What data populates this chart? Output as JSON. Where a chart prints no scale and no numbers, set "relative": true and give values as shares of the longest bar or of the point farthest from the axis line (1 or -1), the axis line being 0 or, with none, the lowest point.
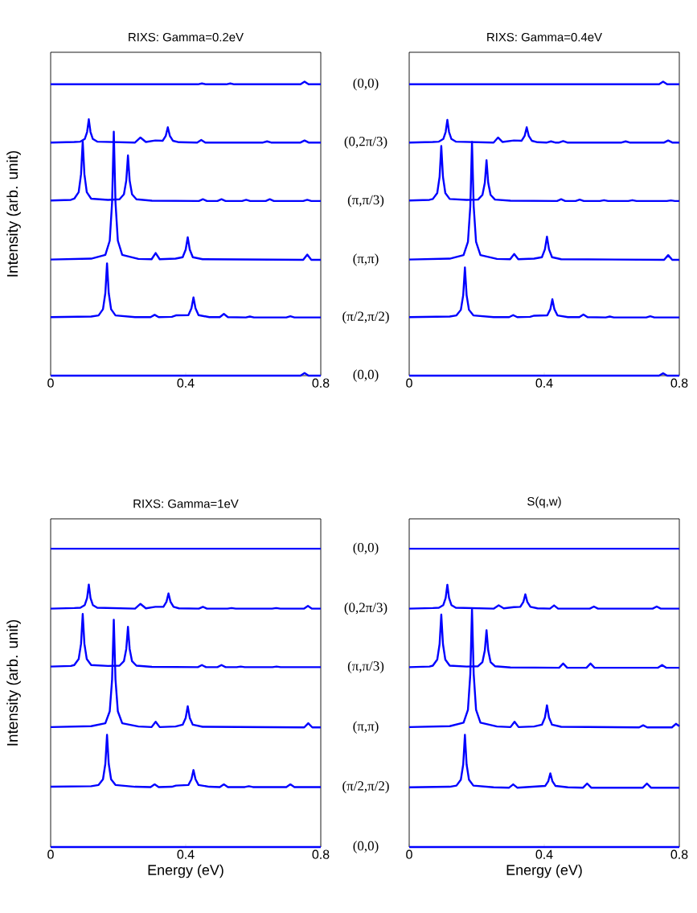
{
  "chart_data": [
    {
      "type": "line",
      "title": "RIXS: Gamma=0.2eV",
      "ylabel": "Intensity (arb. unit)",
      "relative": true,
      "xlim": [
        0,
        0.8
      ],
      "xticks": [
        0,
        0.4,
        0.8
      ],
      "series": [
        {
          "name": "(0,0)",
          "color": "#0000ff",
          "x": [
            0,
            0.436,
            0.448,
            0.46,
            0.52,
            0.532,
            0.544,
            0.74,
            0.752,
            0.764,
            0.8
          ],
          "values": [
            0.991,
            0.991,
            0.994,
            0.991,
            0.991,
            0.994,
            0.991,
            0.991,
            1,
            0.991,
            0.991
          ]
        },
        {
          "name": "(0,2π/3)",
          "color": "#0000ff",
          "x": [
            0,
            0.07,
            0.088,
            0.101,
            0.108,
            0.113,
            0.118,
            0.125,
            0.138,
            0.25,
            0.266,
            0.282,
            0.31,
            0.332,
            0.341,
            0.347,
            0.353,
            0.362,
            0.38,
            0.434,
            0.446,
            0.458,
            0.629,
            0.641,
            0.653,
            0.74,
            0.752,
            0.764,
            0.8
          ],
          "values": [
            0.793,
            0.795,
            0.796,
            0.805,
            0.829,
            0.872,
            0.829,
            0.805,
            0.796,
            0.793,
            0.81,
            0.795,
            0.8,
            0.799,
            0.816,
            0.845,
            0.816,
            0.799,
            0.794,
            0.793,
            0.802,
            0.793,
            0.793,
            0.797,
            0.793,
            0.793,
            0.8,
            0.793,
            0.793
          ]
        },
        {
          "name": "(π,π/3)",
          "color": "#0000ff",
          "x": [
            0,
            0.06,
            0.07,
            0.083,
            0.09,
            0.095,
            0.1,
            0.107,
            0.12,
            0.17,
            0.204,
            0.217,
            0.224,
            0.229,
            0.234,
            0.241,
            0.254,
            0.3,
            0.439,
            0.451,
            0.463,
            0.494,
            0.506,
            0.518,
            0.567,
            0.579,
            0.591,
            0.637,
            0.649,
            0.661,
            0.748,
            0.76,
            0.772,
            0.8
          ],
          "values": [
            0.596,
            0.598,
            0.602,
            0.624,
            0.685,
            0.797,
            0.685,
            0.624,
            0.602,
            0.598,
            0.6,
            0.617,
            0.664,
            0.749,
            0.664,
            0.617,
            0.6,
            0.595,
            0.594,
            0.6,
            0.594,
            0.594,
            0.6,
            0.594,
            0.594,
            0.598,
            0.594,
            0.594,
            0.6,
            0.594,
            0.594,
            0.598,
            0.594,
            0.594
          ]
        },
        {
          "name": "(π,π)",
          "color": "#0000ff",
          "x": [
            0,
            0.12,
            0.162,
            0.175,
            0.182,
            0.187,
            0.192,
            0.199,
            0.212,
            0.26,
            0.299,
            0.311,
            0.323,
            0.37,
            0.391,
            0.4,
            0.406,
            0.412,
            0.421,
            0.45,
            0.748,
            0.76,
            0.772,
            0.8
          ],
          "values": [
            0.395,
            0.398,
            0.411,
            0.459,
            0.59,
            0.83,
            0.59,
            0.459,
            0.411,
            0.397,
            0.396,
            0.417,
            0.396,
            0.398,
            0.403,
            0.429,
            0.471,
            0.429,
            0.403,
            0.396,
            0.394,
            0.412,
            0.394,
            0.394
          ]
        },
        {
          "name": "(π/2,π/2)",
          "color": "#0000ff",
          "x": [
            0,
            0.12,
            0.142,
            0.155,
            0.162,
            0.167,
            0.172,
            0.179,
            0.192,
            0.25,
            0.296,
            0.308,
            0.32,
            0.359,
            0.371,
            0.408,
            0.417,
            0.423,
            0.429,
            0.438,
            0.47,
            0.501,
            0.513,
            0.525,
            0.578,
            0.59,
            0.602,
            0.698,
            0.71,
            0.722,
            0.8
          ],
          "values": [
            0.199,
            0.201,
            0.205,
            0.226,
            0.281,
            0.382,
            0.281,
            0.226,
            0.205,
            0.199,
            0.199,
            0.207,
            0.199,
            0.2,
            0.205,
            0.206,
            0.229,
            0.266,
            0.229,
            0.206,
            0.199,
            0.199,
            0.21,
            0.199,
            0.198,
            0.201,
            0.198,
            0.198,
            0.202,
            0.198,
            0.198
          ]
        },
        {
          "name": "(0,0)",
          "color": "#0000ff",
          "x": [
            0,
            0.74,
            0.752,
            0.764,
            0.8
          ],
          "values": [
            0,
            0,
            0.009,
            0,
            0
          ]
        }
      ]
    },
    {
      "type": "line",
      "title": "RIXS: Gamma=0.4eV",
      "relative": true,
      "xlim": [
        0,
        0.8
      ],
      "xticks": [
        0,
        0.4,
        0.8
      ],
      "series": [
        {
          "color": "#0000ff",
          "x": [
            0,
            0.74,
            0.752,
            0.764,
            0.8
          ],
          "values": [
            0.991,
            0.991,
            1,
            0.991,
            0.991
          ]
        },
        {
          "color": "#0000ff",
          "x": [
            0,
            0.07,
            0.088,
            0.101,
            0.108,
            0.113,
            0.118,
            0.125,
            0.138,
            0.25,
            0.263,
            0.276,
            0.31,
            0.333,
            0.342,
            0.348,
            0.354,
            0.363,
            0.38,
            0.408,
            0.42,
            0.432,
            0.444,
            0.456,
            0.468,
            0.629,
            0.641,
            0.653,
            0.755,
            0.767,
            0.779,
            0.8
          ],
          "values": [
            0.793,
            0.795,
            0.796,
            0.805,
            0.829,
            0.87,
            0.829,
            0.805,
            0.796,
            0.793,
            0.81,
            0.795,
            0.8,
            0.799,
            0.816,
            0.845,
            0.816,
            0.799,
            0.794,
            0.793,
            0.797,
            0.793,
            0.793,
            0.798,
            0.793,
            0.793,
            0.797,
            0.793,
            0.793,
            0.8,
            0.793,
            0.793
          ]
        },
        {
          "color": "#0000ff",
          "x": [
            0,
            0.06,
            0.07,
            0.083,
            0.09,
            0.095,
            0.1,
            0.107,
            0.12,
            0.17,
            0.204,
            0.217,
            0.224,
            0.229,
            0.234,
            0.241,
            0.254,
            0.3,
            0.438,
            0.45,
            0.462,
            0.493,
            0.505,
            0.517,
            0.565,
            0.577,
            0.589,
            0.649,
            0.661,
            0.673,
            0.763,
            0.775,
            0.787,
            0.8
          ],
          "values": [
            0.596,
            0.598,
            0.601,
            0.621,
            0.676,
            0.781,
            0.676,
            0.621,
            0.601,
            0.598,
            0.599,
            0.615,
            0.656,
            0.733,
            0.656,
            0.615,
            0.599,
            0.595,
            0.594,
            0.6,
            0.594,
            0.594,
            0.599,
            0.594,
            0.594,
            0.597,
            0.594,
            0.594,
            0.597,
            0.594,
            0.594,
            0.596,
            0.594,
            0.594
          ]
        },
        {
          "color": "#0000ff",
          "x": [
            0,
            0.12,
            0.161,
            0.174,
            0.181,
            0.186,
            0.191,
            0.198,
            0.211,
            0.26,
            0.299,
            0.311,
            0.323,
            0.37,
            0.393,
            0.402,
            0.408,
            0.414,
            0.423,
            0.45,
            0.755,
            0.767,
            0.779,
            0.8
          ],
          "values": [
            0.395,
            0.398,
            0.41,
            0.455,
            0.576,
            0.795,
            0.576,
            0.455,
            0.41,
            0.397,
            0.396,
            0.414,
            0.396,
            0.398,
            0.403,
            0.43,
            0.473,
            0.43,
            0.403,
            0.396,
            0.394,
            0.41,
            0.394,
            0.394
          ]
        },
        {
          "color": "#0000ff",
          "x": [
            0,
            0.12,
            0.14,
            0.153,
            0.16,
            0.165,
            0.17,
            0.177,
            0.19,
            0.25,
            0.296,
            0.308,
            0.32,
            0.358,
            0.37,
            0.409,
            0.418,
            0.424,
            0.43,
            0.439,
            0.47,
            0.504,
            0.516,
            0.528,
            0.582,
            0.594,
            0.606,
            0.702,
            0.714,
            0.726,
            0.8
          ],
          "values": [
            0.199,
            0.201,
            0.205,
            0.224,
            0.274,
            0.368,
            0.274,
            0.224,
            0.205,
            0.199,
            0.199,
            0.206,
            0.199,
            0.2,
            0.204,
            0.205,
            0.226,
            0.26,
            0.226,
            0.205,
            0.199,
            0.199,
            0.208,
            0.199,
            0.198,
            0.201,
            0.198,
            0.198,
            0.202,
            0.198,
            0.198
          ]
        },
        {
          "color": "#0000ff",
          "x": [
            0,
            0.74,
            0.752,
            0.764,
            0.8
          ],
          "values": [
            0,
            0,
            0.008,
            0,
            0
          ]
        }
      ]
    },
    {
      "type": "line",
      "title": "RIXS: Gamma=1eV",
      "xlabel": "Energy (eV)",
      "ylabel": "Intensity (arb. unit)",
      "relative": true,
      "xlim": [
        0,
        0.8
      ],
      "xticks": [
        0,
        0.4,
        0.8
      ],
      "series": [
        {
          "name": "(0,0)",
          "color": "#0000ff",
          "x": [
            0,
            0.8
          ],
          "values": [
            1,
            1
          ]
        },
        {
          "name": "(0,2π/3)",
          "color": "#0000ff",
          "x": [
            0,
            0.07,
            0.088,
            0.101,
            0.108,
            0.113,
            0.118,
            0.125,
            0.138,
            0.25,
            0.266,
            0.282,
            0.31,
            0.334,
            0.343,
            0.349,
            0.355,
            0.364,
            0.38,
            0.439,
            0.451,
            0.463,
            0.524,
            0.536,
            0.548,
            0.656,
            0.668,
            0.68,
            0.75,
            0.762,
            0.774,
            0.8
          ],
          "values": [
            0.799,
            0.801,
            0.802,
            0.811,
            0.835,
            0.88,
            0.835,
            0.811,
            0.802,
            0.799,
            0.815,
            0.8,
            0.805,
            0.805,
            0.822,
            0.85,
            0.822,
            0.805,
            0.8,
            0.799,
            0.805,
            0.799,
            0.799,
            0.801,
            0.799,
            0.799,
            0.801,
            0.799,
            0.799,
            0.808,
            0.799,
            0.799
          ]
        },
        {
          "name": "(π,π/3)",
          "color": "#0000ff",
          "x": [
            0,
            0.06,
            0.07,
            0.083,
            0.09,
            0.095,
            0.1,
            0.107,
            0.12,
            0.17,
            0.204,
            0.217,
            0.224,
            0.229,
            0.234,
            0.241,
            0.254,
            0.3,
            0.436,
            0.448,
            0.46,
            0.494,
            0.506,
            0.518,
            0.551,
            0.563,
            0.575,
            0.657,
            0.669,
            0.681,
            0.8
          ],
          "values": [
            0.605,
            0.607,
            0.61,
            0.63,
            0.681,
            0.781,
            0.681,
            0.63,
            0.61,
            0.607,
            0.608,
            0.623,
            0.664,
            0.738,
            0.664,
            0.623,
            0.608,
            0.604,
            0.603,
            0.61,
            0.603,
            0.603,
            0.61,
            0.603,
            0.603,
            0.605,
            0.603,
            0.603,
            0.605,
            0.603,
            0.603
          ]
        },
        {
          "name": "(π,π)",
          "color": "#0000ff",
          "x": [
            0,
            0.12,
            0.162,
            0.175,
            0.182,
            0.187,
            0.192,
            0.199,
            0.212,
            0.26,
            0.299,
            0.311,
            0.323,
            0.37,
            0.391,
            0.4,
            0.406,
            0.412,
            0.421,
            0.45,
            0.751,
            0.763,
            0.775,
            0.8
          ],
          "values": [
            0.402,
            0.405,
            0.415,
            0.455,
            0.562,
            0.762,
            0.562,
            0.455,
            0.415,
            0.404,
            0.402,
            0.42,
            0.402,
            0.404,
            0.41,
            0.433,
            0.472,
            0.433,
            0.41,
            0.403,
            0.401,
            0.415,
            0.401,
            0.401
          ]
        },
        {
          "name": "(π/2,π/2)",
          "color": "#0000ff",
          "x": [
            0,
            0.12,
            0.142,
            0.155,
            0.162,
            0.167,
            0.172,
            0.179,
            0.192,
            0.25,
            0.296,
            0.308,
            0.32,
            0.359,
            0.371,
            0.408,
            0.417,
            0.423,
            0.429,
            0.438,
            0.47,
            0.501,
            0.513,
            0.525,
            0.575,
            0.587,
            0.599,
            0.698,
            0.71,
            0.722,
            0.8
          ],
          "values": [
            0.202,
            0.204,
            0.208,
            0.227,
            0.279,
            0.376,
            0.279,
            0.227,
            0.208,
            0.202,
            0.201,
            0.21,
            0.201,
            0.202,
            0.206,
            0.208,
            0.227,
            0.258,
            0.227,
            0.208,
            0.202,
            0.201,
            0.21,
            0.201,
            0.201,
            0.204,
            0.201,
            0.201,
            0.21,
            0.201,
            0.201
          ]
        },
        {
          "name": "(0,0)",
          "color": "#0000ff",
          "x": [
            0,
            0.8
          ],
          "values": [
            0,
            0
          ]
        }
      ]
    },
    {
      "type": "line",
      "title": "S(q,w)",
      "xlabel": "Energy (eV)",
      "relative": true,
      "xlim": [
        0,
        0.8
      ],
      "xticks": [
        0,
        0.4,
        0.8
      ],
      "series": [
        {
          "color": "#0000ff",
          "x": [
            0,
            0.8
          ],
          "values": [
            1,
            1
          ]
        },
        {
          "color": "#0000ff",
          "x": [
            0,
            0.07,
            0.088,
            0.101,
            0.108,
            0.113,
            0.118,
            0.125,
            0.138,
            0.25,
            0.265,
            0.28,
            0.31,
            0.329,
            0.338,
            0.344,
            0.35,
            0.359,
            0.38,
            0.417,
            0.429,
            0.441,
            0.535,
            0.547,
            0.559,
            0.721,
            0.733,
            0.745,
            0.8
          ],
          "values": [
            0.799,
            0.801,
            0.802,
            0.811,
            0.835,
            0.879,
            0.835,
            0.811,
            0.802,
            0.799,
            0.81,
            0.8,
            0.804,
            0.805,
            0.821,
            0.847,
            0.821,
            0.805,
            0.8,
            0.799,
            0.81,
            0.799,
            0.799,
            0.806,
            0.799,
            0.799,
            0.806,
            0.799,
            0.799
          ]
        },
        {
          "color": "#0000ff",
          "x": [
            0,
            0.06,
            0.07,
            0.083,
            0.09,
            0.095,
            0.1,
            0.107,
            0.12,
            0.17,
            0.204,
            0.217,
            0.224,
            0.229,
            0.234,
            0.241,
            0.254,
            0.3,
            0.444,
            0.456,
            0.468,
            0.525,
            0.537,
            0.549,
            0.737,
            0.749,
            0.761,
            0.8
          ],
          "values": [
            0.603,
            0.605,
            0.608,
            0.628,
            0.68,
            0.779,
            0.68,
            0.628,
            0.608,
            0.605,
            0.606,
            0.62,
            0.659,
            0.727,
            0.659,
            0.62,
            0.606,
            0.602,
            0.601,
            0.615,
            0.601,
            0.601,
            0.615,
            0.601,
            0.601,
            0.61,
            0.601,
            0.601
          ]
        },
        {
          "color": "#0000ff",
          "x": [
            0,
            0.12,
            0.161,
            0.174,
            0.181,
            0.186,
            0.191,
            0.198,
            0.211,
            0.26,
            0.3,
            0.312,
            0.324,
            0.37,
            0.393,
            0.402,
            0.408,
            0.414,
            0.423,
            0.45,
            0.681,
            0.693,
            0.705,
            0.778,
            0.79,
            0.8
          ],
          "values": [
            0.402,
            0.405,
            0.417,
            0.46,
            0.58,
            0.797,
            0.58,
            0.46,
            0.417,
            0.404,
            0.402,
            0.42,
            0.402,
            0.404,
            0.41,
            0.434,
            0.475,
            0.434,
            0.41,
            0.403,
            0.401,
            0.408,
            0.401,
            0.401,
            0.413,
            0.405
          ]
        },
        {
          "color": "#0000ff",
          "x": [
            0,
            0.12,
            0.14,
            0.153,
            0.16,
            0.165,
            0.17,
            0.177,
            0.19,
            0.25,
            0.296,
            0.308,
            0.32,
            0.403,
            0.412,
            0.418,
            0.424,
            0.433,
            0.47,
            0.515,
            0.527,
            0.539,
            0.692,
            0.704,
            0.716,
            0.8
          ],
          "values": [
            0.2,
            0.202,
            0.206,
            0.226,
            0.277,
            0.376,
            0.277,
            0.226,
            0.206,
            0.2,
            0.199,
            0.21,
            0.199,
            0.205,
            0.221,
            0.247,
            0.221,
            0.205,
            0.2,
            0.199,
            0.213,
            0.199,
            0.199,
            0.213,
            0.199,
            0.199
          ]
        },
        {
          "color": "#0000ff",
          "x": [
            0,
            0.8
          ],
          "values": [
            0,
            0
          ]
        }
      ]
    }
  ]
}
